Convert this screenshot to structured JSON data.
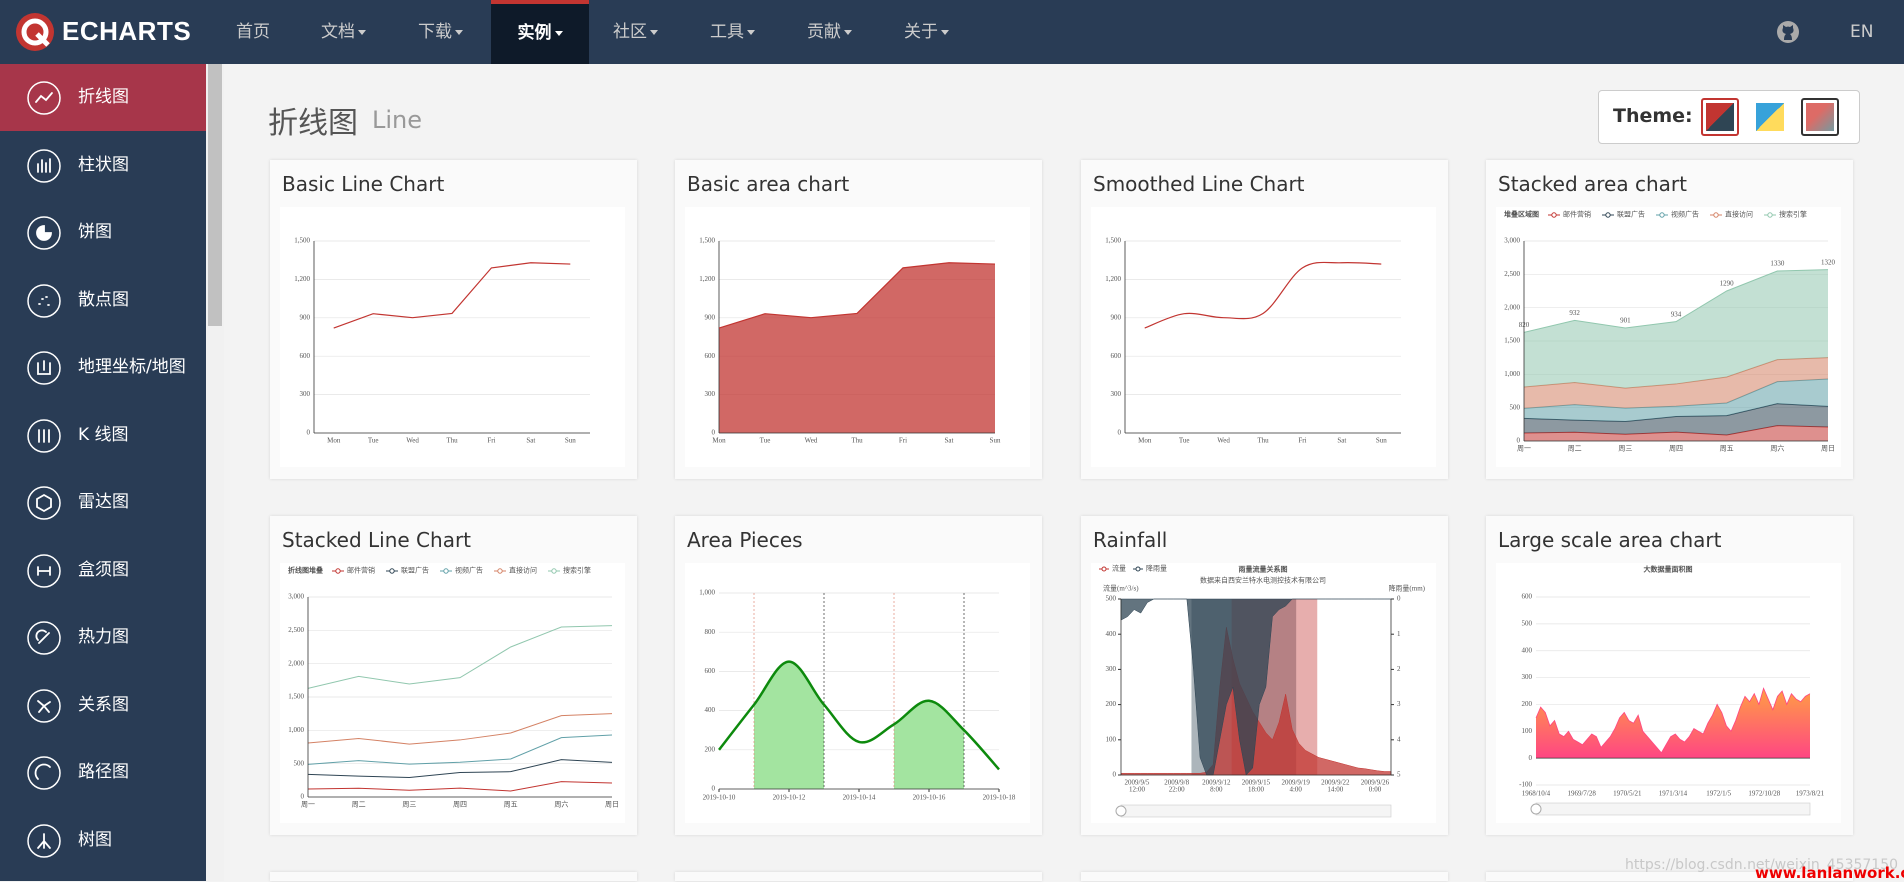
{
  "nav": {
    "logo": "ECHARTS",
    "items": [
      "首页",
      "文档",
      "下载",
      "实例",
      "社区",
      "工具",
      "贡献",
      "关于"
    ],
    "lang": "EN"
  },
  "sidebar": {
    "items": [
      "折线图",
      "柱状图",
      "饼图",
      "散点图",
      "地理坐标/地图",
      "K 线图",
      "雷达图",
      "盒须图",
      "热力图",
      "关系图",
      "路径图",
      "树图"
    ]
  },
  "page": {
    "title": "折线图",
    "subtitle": "Line",
    "theme_label": "Theme:"
  },
  "examples": [
    {
      "title": "Basic Line Chart",
      "preview": {
        "type": "line",
        "categories": [
          "Mon",
          "Tue",
          "Wed",
          "Thu",
          "Fri",
          "Sat",
          "Sun"
        ],
        "values": [
          820,
          932,
          901,
          934,
          1290,
          1330,
          1320
        ],
        "color": "#c23531",
        "ylim": [
          0,
          1500
        ],
        "yticks": [
          0,
          300,
          600,
          900,
          {
            "value": 1200,
            "label": "1,200"
          },
          {
            "value": 1500,
            "label": "1,500"
          }
        ],
        "boundary_gap": true,
        "smooth": false,
        "area": false
      }
    },
    {
      "title": "Basic area chart",
      "preview": {
        "type": "line",
        "categories": [
          "Mon",
          "Tue",
          "Wed",
          "Thu",
          "Fri",
          "Sat",
          "Sun"
        ],
        "values": [
          820,
          932,
          901,
          934,
          1290,
          1330,
          1320
        ],
        "color": "#c23531",
        "ylim": [
          0,
          1500
        ],
        "yticks": [
          0,
          300,
          600,
          900,
          {
            "value": 1200,
            "label": "1,200"
          },
          {
            "value": 1500,
            "label": "1,500"
          }
        ],
        "boundary_gap": false,
        "smooth": false,
        "area": true
      }
    },
    {
      "title": "Smoothed Line Chart",
      "preview": {
        "type": "line",
        "categories": [
          "Mon",
          "Tue",
          "Wed",
          "Thu",
          "Fri",
          "Sat",
          "Sun"
        ],
        "values": [
          820,
          932,
          901,
          934,
          1290,
          1330,
          1320
        ],
        "color": "#c23531",
        "ylim": [
          0,
          1500
        ],
        "yticks": [
          0,
          300,
          600,
          900,
          {
            "value": 1200,
            "label": "1,200"
          },
          {
            "value": 1500,
            "label": "1,500"
          }
        ],
        "boundary_gap": true,
        "smooth": true,
        "area": false
      }
    },
    {
      "title": "Stacked area chart",
      "preview": {
        "type": "stacked",
        "title": "堆叠区域图",
        "area": true,
        "categories": [
          "周一",
          "周二",
          "周三",
          "周四",
          "周五",
          "周六",
          "周日"
        ],
        "series": [
          {
            "name": "邮件营销",
            "color": "#c23531",
            "values": [
              120,
              132,
              101,
              134,
              90,
              230,
              210
            ]
          },
          {
            "name": "联盟广告",
            "color": "#2f4554",
            "values": [
              220,
              182,
              191,
              234,
              290,
              330,
              310
            ]
          },
          {
            "name": "视频广告",
            "color": "#61a0a8",
            "values": [
              150,
              232,
              201,
              154,
              190,
              330,
              410
            ]
          },
          {
            "name": "直接访问",
            "color": "#d48265",
            "values": [
              320,
              332,
              301,
              334,
              390,
              330,
              320
            ]
          },
          {
            "name": "搜索引擎",
            "color": "#91c7ae",
            "values": [
              820,
              932,
              901,
              934,
              1290,
              1330,
              1320
            ],
            "labels": true
          }
        ],
        "ylim": [
          0,
          3000
        ],
        "yticks": [
          0,
          500,
          {
            "value": 1000,
            "label": "1,000"
          },
          {
            "value": 1500,
            "label": "1,500"
          },
          {
            "value": 2000,
            "label": "2,000"
          },
          {
            "value": 2500,
            "label": "2,500"
          },
          {
            "value": 3000,
            "label": "3,000"
          }
        ]
      }
    },
    {
      "title": "Stacked Line Chart",
      "preview": {
        "type": "stacked",
        "title": "折线图堆叠",
        "area": false,
        "categories": [
          "周一",
          "周二",
          "周三",
          "周四",
          "周五",
          "周六",
          "周日"
        ],
        "series": [
          {
            "name": "邮件营销",
            "color": "#c23531",
            "values": [
              120,
              132,
              101,
              134,
              90,
              230,
              210
            ]
          },
          {
            "name": "联盟广告",
            "color": "#2f4554",
            "values": [
              220,
              182,
              191,
              234,
              290,
              330,
              310
            ]
          },
          {
            "name": "视频广告",
            "color": "#61a0a8",
            "values": [
              150,
              232,
              201,
              154,
              190,
              330,
              410
            ]
          },
          {
            "name": "直接访问",
            "color": "#d48265",
            "values": [
              320,
              332,
              301,
              334,
              390,
              330,
              320
            ]
          },
          {
            "name": "搜索引擎",
            "color": "#91c7ae",
            "values": [
              820,
              932,
              901,
              934,
              1290,
              1330,
              1320
            ]
          }
        ],
        "ylim": [
          0,
          3000
        ],
        "yticks": [
          0,
          500,
          {
            "value": 1000,
            "label": "1,000"
          },
          {
            "value": 1500,
            "label": "1,500"
          },
          {
            "value": 2000,
            "label": "2,000"
          },
          {
            "value": 2500,
            "label": "2,500"
          },
          {
            "value": 3000,
            "label": "3,000"
          }
        ]
      }
    },
    {
      "title": "Area Pieces",
      "preview": {
        "type": "pieces",
        "x": [
          "2019-10-10",
          "2019-10-11",
          "2019-10-12",
          "2019-10-13",
          "2019-10-14",
          "2019-10-15",
          "2019-10-16",
          "2019-10-17",
          "2019-10-18"
        ],
        "values": [
          200,
          430,
          650,
          430,
          240,
          330,
          450,
          300,
          100
        ],
        "xlim": [
          "2019-10-10",
          "2019-10-18"
        ],
        "xticks": [
          "2019-10-10",
          "2019-10-12",
          "2019-10-14",
          "2019-10-16",
          "2019-10-18"
        ],
        "ylim": [
          0,
          1000
        ],
        "yticks": [
          0,
          200,
          400,
          600,
          800,
          {
            "value": 1000,
            "label": "1,000"
          }
        ],
        "pieces": [
          {
            "gt": "2019-10-11",
            "lt": "2019-10-13"
          },
          {
            "gt": "2019-10-15",
            "lt": "2019-10-17"
          }
        ],
        "color": "#0d8a0d",
        "piece_color": "#a3e4a0"
      }
    },
    {
      "title": "Rainfall",
      "preview": {
        "type": "rainfall",
        "title": "雨量流量关系图",
        "subtitle": "数据来自西安兰特水电测控技术有限公司",
        "y_name": "流量(m^3/s)",
        "y2_name": "降雨量(mm)",
        "series": [
          {
            "name": "流量",
            "color": "#c23531",
            "values": [
              5,
              5,
              5,
              5,
              5,
              5,
              5,
              5,
              5,
              5,
              5,
              5,
              5,
              8,
              30,
              250,
              420,
              330,
              260,
              220,
              180,
              150,
              120,
              100,
              150,
              230,
              130,
              90,
              70,
              60,
              50,
              45,
              40,
              35,
              30,
              25,
              20,
              18,
              15,
              12,
              10,
              10
            ]
          },
          {
            "name": "降雨量",
            "color": "#2f4554",
            "axis": "y2",
            "values": [
              0.6,
              0.5,
              0.3,
              0.4,
              0.1,
              0,
              0,
              0,
              0,
              0,
              0,
              2,
              4.5,
              5,
              5,
              4,
              3,
              2.5,
              4,
              5,
              4.8,
              3,
              2.5,
              0.5,
              0.3,
              0.2,
              0,
              0,
              0,
              0,
              0,
              0,
              0,
              0,
              0,
              0,
              0,
              0,
              0,
              0,
              0,
              0
            ]
          }
        ],
        "ylim": [
          0,
          500
        ],
        "yticks": [
          0,
          100,
          200,
          300,
          400,
          500
        ],
        "y2lim": [
          0,
          5
        ],
        "y2_inverse": true,
        "y2ticks": [
          0,
          1,
          2,
          3,
          4,
          5
        ],
        "xlabels": [
          {
            "date": "2009/9/5",
            "time": "12:00"
          },
          {
            "date": "2009/9/8",
            "time": "22:00"
          },
          {
            "date": "2009/9/12",
            "time": "8:00"
          },
          {
            "date": "2009/9/15",
            "time": "18:00"
          },
          {
            "date": "2009/9/19",
            "time": "4:00"
          },
          {
            "date": "2009/9/22",
            "time": "14:00"
          },
          {
            "date": "2009/9/26",
            "time": "0:00"
          }
        ],
        "mark_areas": [
          {
            "from": 10.7,
            "to": 26.6,
            "color": "#2f4554"
          },
          {
            "from": 16.8,
            "to": 29.8,
            "color": "#c23531"
          }
        ]
      }
    },
    {
      "title": "Large scale area chart",
      "preview": {
        "type": "large",
        "title": "大数据量面积图",
        "values": [
          150,
          190,
          170,
          120,
          140,
          90,
          80,
          100,
          70,
          60,
          50,
          70,
          90,
          80,
          40,
          60,
          80,
          110,
          150,
          170,
          140,
          130,
          160,
          100,
          80,
          60,
          40,
          20,
          50,
          80,
          90,
          70,
          60,
          80,
          110,
          100,
          90,
          130,
          160,
          200,
          170,
          120,
          100,
          140,
          190,
          230,
          210,
          240,
          200,
          260,
          220,
          180,
          230,
          250,
          200,
          240,
          220,
          210,
          230,
          240
        ],
        "ylim": [
          -100,
          600
        ],
        "yticks": [
          -100,
          0,
          100,
          200,
          300,
          400,
          500,
          600
        ],
        "xlabels": [
          "1968/10/4",
          "1969/7/28",
          "1970/5/21",
          "1971/3/14",
          "1972/1/5",
          "1972/10/28",
          "1973/8/21"
        ],
        "color": "#ff4683",
        "gradient": [
          "#ff9e44",
          "#ff4683"
        ]
      }
    }
  ],
  "watermark": {
    "url": "https://blog.csdn.net/weixin_45357150",
    "site": "www.lanlanwork.com"
  }
}
